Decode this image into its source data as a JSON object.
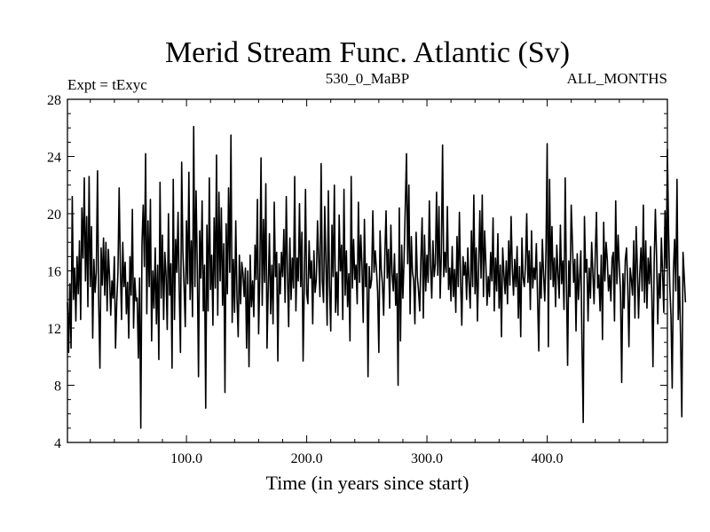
{
  "chart_data": {
    "type": "line",
    "title": "Merid Stream Func. Atlantic (Sv)",
    "subtitle_left": "Expt = tExyc",
    "subtitle_center": "530_0_MaBP",
    "subtitle_right": "ALL_MONTHS",
    "xlabel": "Time (in years since start)",
    "ylabel": "",
    "xlim": [
      1,
      500
    ],
    "ylim": [
      4,
      28
    ],
    "x_ticks": [
      100,
      200,
      300,
      400
    ],
    "x_tick_labels": [
      "100.0",
      "200.0",
      "300.0",
      "400.0"
    ],
    "y_ticks": [
      4,
      8,
      12,
      16,
      20,
      24,
      28
    ],
    "y_tick_labels": [
      "4",
      "8",
      "12",
      "16",
      "20",
      "24",
      "28"
    ],
    "grid": false,
    "legend": "none",
    "line_color": "#000000",
    "series": [
      {
        "x_start": 1,
        "x_step": 1,
        "values": [
          13.8,
          10.3,
          15.1,
          10.6,
          21.2,
          14.0,
          16.2,
          12.5,
          17.0,
          14.4,
          18.1,
          12.6,
          20.4,
          16.9,
          22.5,
          15.3,
          19.8,
          13.5,
          22.6,
          14.9,
          19.1,
          11.3,
          16.8,
          14.5,
          15.9,
          23.0,
          13.8,
          9.2,
          17.6,
          15.0,
          18.3,
          14.3,
          18.0,
          13.2,
          17.5,
          15.6,
          12.9,
          15.3,
          14.1,
          17.0,
          10.6,
          13.8,
          15.9,
          21.8,
          16.3,
          12.6,
          18.0,
          14.9,
          16.6,
          13.0,
          15.2,
          11.3,
          17.0,
          14.3,
          20.3,
          12.0,
          15.5,
          13.9,
          14.1,
          9.9,
          15.5,
          5.0,
          17.9,
          20.6,
          16.3,
          24.2,
          13.0,
          19.5,
          14.9,
          21.0,
          11.1,
          16.0,
          13.4,
          17.6,
          12.3,
          16.4,
          9.8,
          22.2,
          14.1,
          18.5,
          12.6,
          17.3,
          15.7,
          11.9,
          20.0,
          14.3,
          16.5,
          9.2,
          22.4,
          12.6,
          18.2,
          15.9,
          20.1,
          14.6,
          10.3,
          23.6,
          17.4,
          14.9,
          12.1,
          19.5,
          15.1,
          22.9,
          14.0,
          18.1,
          12.8,
          26.1,
          14.9,
          21.6,
          16.2,
          8.6,
          18.8,
          15.5,
          20.9,
          13.2,
          16.4,
          6.4,
          19.2,
          13.2,
          22.5,
          14.7,
          17.1,
          12.2,
          19.7,
          14.8,
          24.1,
          12.9,
          21.5,
          15.3,
          20.4,
          13.6,
          17.9,
          7.5,
          19.3,
          14.4,
          21.8,
          15.9,
          25.5,
          12.4,
          16.8,
          13.1,
          19.5,
          14.2,
          11.4,
          17.1,
          13.7,
          16.6,
          15.8,
          14.2,
          16.2,
          10.6,
          16.0,
          9.3,
          17.1,
          13.5,
          15.3,
          12.8,
          17.8,
          15.4,
          21.0,
          11.6,
          15.7,
          23.9,
          13.6,
          19.6,
          15.2,
          22.1,
          10.6,
          14.8,
          18.6,
          13.0,
          16.4,
          12.3,
          20.8,
          15.6,
          17.3,
          9.7,
          16.5,
          14.4,
          17.3,
          15.6,
          18.9,
          13.8,
          21.2,
          15.7,
          12.1,
          18.3,
          14.0,
          16.9,
          14.8,
          22.6,
          13.2,
          16.9,
          15.3,
          20.7,
          14.9,
          18.7,
          9.7,
          15.1,
          21.7,
          14.4,
          13.7,
          18.1,
          15.5,
          16.7,
          12.3,
          17.4,
          14.5,
          15.4,
          19.5,
          16.8,
          14.2,
          23.5,
          15.3,
          13.8,
          20.5,
          16.5,
          12.2,
          21.6,
          14.9,
          11.8,
          19.2,
          15.6,
          22.0,
          13.1,
          15.9,
          12.9,
          19.9,
          16.0,
          17.8,
          12.6,
          21.7,
          14.3,
          17.4,
          13.5,
          15.8,
          11.1,
          22.6,
          14.8,
          18.2,
          15.4,
          16.4,
          13.7,
          20.8,
          15.2,
          18.5,
          16.3,
          12.4,
          19.6,
          14.9,
          16.5,
          8.6,
          16.3,
          14.8,
          15.4,
          20.2,
          15.9,
          17.4,
          16.1,
          14.5,
          10.3,
          18.8,
          16.1,
          15.1,
          12.9,
          17.1,
          20.2,
          15.5,
          17.5,
          13.4,
          19.2,
          15.8,
          14.6,
          17.2,
          13.6,
          15.8,
          8.0,
          20.4,
          11.1,
          17.8,
          14.1,
          16.9,
          20.5,
          24.2,
          16.5,
          22.0,
          13.0,
          18.4,
          15.9,
          15.3,
          12.3,
          18.7,
          15.6,
          14.6,
          13.2,
          16.9,
          19.7,
          12.7,
          18.5,
          14.6,
          17.1,
          15.2,
          20.9,
          16.4,
          14.1,
          18.1,
          15.6,
          16.5,
          21.5,
          15.7,
          20.5,
          14.1,
          17.2,
          24.8,
          15.6,
          17.3,
          15.9,
          20.5,
          14.7,
          16.2,
          13.9,
          17.7,
          14.2,
          16.1,
          13.1,
          18.4,
          14.9,
          20.1,
          15.3,
          12.2,
          17.0,
          15.7,
          16.6,
          14.0,
          17.6,
          15.1,
          13.4,
          18.8,
          14.9,
          21.3,
          14.4,
          17.6,
          12.5,
          16.2,
          20.2,
          15.5,
          21.3,
          14.2,
          18.8,
          16.5,
          13.6,
          15.6,
          14.2,
          17.3,
          15.3,
          19.7,
          13.2,
          16.9,
          14.6,
          18.6,
          13.4,
          16.4,
          11.4,
          17.6,
          15.8,
          14.4,
          16.7,
          13.7,
          18.1,
          15.0,
          19.8,
          16.2,
          14.3,
          16.8,
          14.9,
          17.7,
          12.7,
          16.3,
          11.4,
          18.3,
          15.5,
          14.9,
          16.5,
          20.0,
          15.2,
          17.4,
          13.3,
          18.8,
          14.8,
          16.2,
          15.4,
          17.9,
          14.2,
          10.4,
          16.6,
          14.1,
          18.2,
          15.7,
          13.9,
          17.3,
          24.9,
          10.7,
          22.4,
          15.4,
          19.1,
          14.9,
          16.9,
          13.5,
          17.8,
          15.8,
          14.1,
          19.2,
          15.1,
          16.7,
          13.3,
          22.5,
          15.4,
          9.4,
          16.7,
          14.2,
          20.6,
          18.0,
          15.2,
          16.8,
          11.8,
          17.2,
          14.0,
          15.6,
          17.4,
          10.6,
          5.4,
          19.8,
          15.9,
          16.8,
          12.5,
          16.2,
          14.1,
          18.0,
          15.9,
          13.7,
          17.1,
          20.1,
          14.8,
          15.7,
          13.2,
          17.1,
          11.2,
          19.4,
          15.3,
          18.0,
          16.8,
          14.6,
          15.7,
          13.9,
          16.9,
          17.3,
          12.5,
          20.9,
          15.1,
          18.5,
          16.3,
          14.5,
          8.2,
          15.8,
          13.4,
          16.8,
          17.6,
          15.0,
          10.7,
          16.2,
          15.4,
          14.3,
          18.1,
          12.7,
          19.1,
          16.3,
          12.7,
          15.8,
          17.6,
          14.6,
          20.6,
          13.8,
          18.1,
          13.4,
          16.9,
          15.1,
          17.7,
          14.5,
          9.3,
          16.6,
          20.3,
          17.0,
          12.3,
          15.8,
          14.1,
          18.3,
          15.8,
          13.1,
          20.2,
          16.2,
          24.5,
          18.7,
          14.9,
          12.8,
          7.8,
          16.0,
          18.2,
          14.6,
          22.4,
          12.6,
          15.6,
          11.1,
          5.8,
          17.3,
          15.6,
          13.8
        ]
      }
    ]
  }
}
